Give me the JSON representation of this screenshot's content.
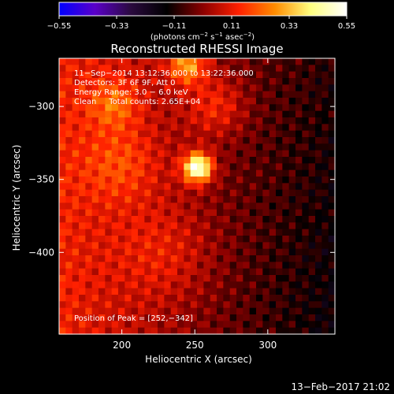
{
  "chart_data": {
    "type": "heatmap",
    "title": "Reconstructed RHESSI Image",
    "xlabel": "Heliocentric X (arcsec)",
    "ylabel": "Heliocentric Y (arcsec)",
    "xlim": [
      157,
      346
    ],
    "ylim": [
      -456,
      -267
    ],
    "xticks": [
      200,
      250,
      300
    ],
    "xtick_labels": [
      "200",
      "250",
      "300"
    ],
    "yticks": [
      -300,
      -350,
      -400
    ],
    "ytick_labels": [
      "−300",
      "−350",
      "−400"
    ],
    "colorbar": {
      "range": [
        -0.55,
        0.55
      ],
      "ticks": [
        -0.55,
        -0.33,
        -0.11,
        0.11,
        0.33,
        0.55
      ],
      "tick_labels": [
        "−0.55",
        "−0.33",
        "−0.11",
        "0.11",
        "0.33",
        "0.55"
      ],
      "colormap": [
        "#0000ff",
        "#5a00c8",
        "#2a0a3e",
        "#000000",
        "#8b0000",
        "#ff2000",
        "#ff8c00",
        "#ffff80",
        "#ffffff"
      ]
    },
    "annotations": [
      "11−Sep−2014 13:12:36.000 to 13:22:36.000",
      "Detectors: 3F 6F 9F, Att 0",
      "Energy Range: 3.0 − 6.0 keV",
      "Clean     Total counts: 2.65E+04"
    ],
    "peak_label": "Position of Peak = [252,−342]",
    "peak": {
      "x": 252,
      "y": -342,
      "value": 0.55
    },
    "sources": [
      {
        "x": 252,
        "y": -342,
        "sigma": 7,
        "value": 0.55
      },
      {
        "x": 245,
        "y": -272,
        "sigma": 9,
        "value": 0.28
      },
      {
        "x": 195,
        "y": -298,
        "sigma": 12,
        "value": 0.16
      },
      {
        "x": 265,
        "y": -300,
        "sigma": 14,
        "value": 0.14
      },
      {
        "x": 200,
        "y": -340,
        "sigma": 18,
        "value": 0.12
      },
      {
        "x": 230,
        "y": -400,
        "sigma": 22,
        "value": 0.09
      }
    ],
    "background": {
      "left_value": 0.13,
      "right_value": -0.11
    }
  },
  "footer": {
    "date": "13−Feb−2017 21:02"
  },
  "colors": {
    "background": "#000000",
    "foreground": "#ffffff"
  }
}
